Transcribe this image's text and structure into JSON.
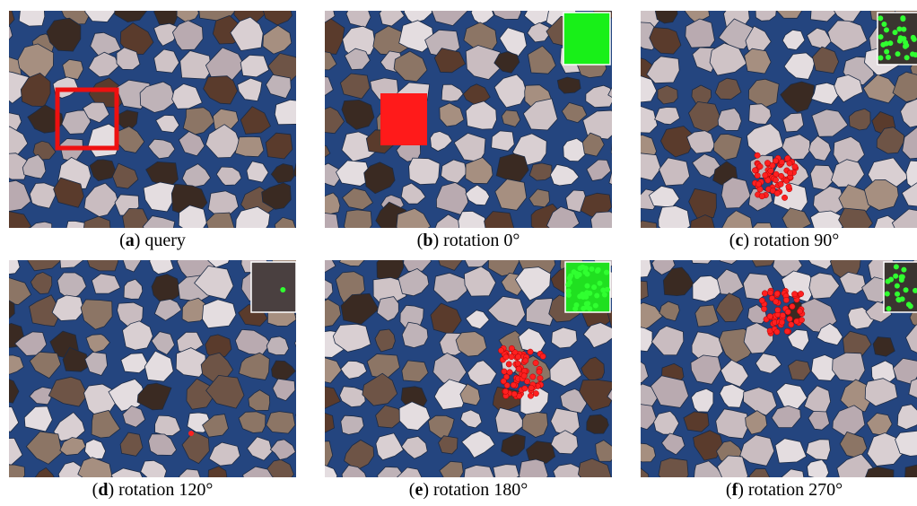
{
  "panels": [
    {
      "prefix": "(",
      "letter": "a",
      "caption": ") query"
    },
    {
      "prefix": "(",
      "letter": "b",
      "caption": ") rotation 0°"
    },
    {
      "prefix": "(",
      "letter": "c",
      "caption": ") rotation 90°"
    },
    {
      "prefix": "(",
      "letter": "d",
      "caption": ") rotation 120°"
    },
    {
      "prefix": "(",
      "letter": "e",
      "caption": ") rotation 180°"
    },
    {
      "prefix": "(",
      "letter": "f",
      "caption": ") rotation 270°"
    }
  ]
}
